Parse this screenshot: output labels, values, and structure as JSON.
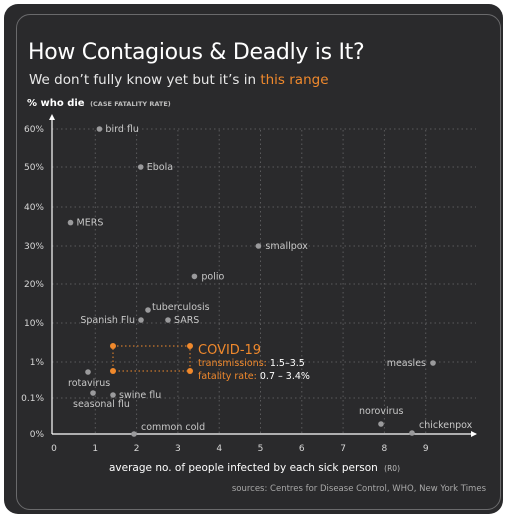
{
  "title": "How Contagious & Deadly is It?",
  "subtitle_plain": "We don’t fully know yet but it’s in ",
  "subtitle_highlight": "this range",
  "accent_color": "#f0892c",
  "source": "sources: Centres for Disease Control, WHO, New York Times",
  "chart_data": {
    "type": "scatter",
    "ylabel_main": "% who die",
    "ylabel_sub": "(CASE FATALITY RATE)",
    "xlabel_main": "average no. of people infected by each sick person",
    "xlabel_sub": "(R0)",
    "x_ticks": [
      "0",
      "1",
      "2",
      "3",
      "4",
      "5",
      "6",
      "7",
      "8",
      "9"
    ],
    "xlim": [
      0,
      10
    ],
    "y_ticks": [
      "0%",
      "0.1%",
      "1%",
      "10%",
      "20%",
      "30%",
      "40%",
      "50%",
      "60%"
    ],
    "y_scale": "piecewise: 0%, 0.1%, 1% then linear 10%–60%",
    "grid": true,
    "points": [
      {
        "label": "bird flu",
        "x": 1.1,
        "y": 60
      },
      {
        "label": "Ebola",
        "x": 2.1,
        "y": 50
      },
      {
        "label": "MERS",
        "x": 0.4,
        "y": 36
      },
      {
        "label": "smallpox",
        "x": 4.95,
        "y": 30
      },
      {
        "label": "polio",
        "x": 3.4,
        "y": 22
      },
      {
        "label": "tuberculosis",
        "x": 2.3,
        "y": 13
      },
      {
        "label": "Spanish Flu",
        "x": 2.1,
        "y": 10
      },
      {
        "label": "SARS",
        "x": 2.8,
        "y": 10
      },
      {
        "label": "measles",
        "x": 9.0,
        "y": 2
      },
      {
        "label": "rotavirus",
        "x": 0.85,
        "y": 0.4
      },
      {
        "label": "swine flu",
        "x": 1.4,
        "y": 0.1
      },
      {
        "label": "seasonal flu",
        "x": 0.95,
        "y": 0.1
      },
      {
        "label": "norovirus",
        "x": 7.8,
        "y": 0.03
      },
      {
        "label": "common cold",
        "x": 1.9,
        "y": 0
      },
      {
        "label": "chickenpox",
        "x": 8.45,
        "y": 0
      }
    ],
    "covid": {
      "label": "COVID-19",
      "transmissions_key": "transmissions:",
      "transmissions_value": "1.5–3.5",
      "transmissions_range": [
        1.5,
        3.5
      ],
      "fatality_key": "fatality rate:",
      "fatality_value": "0.7 – 3.4%",
      "fatality_range": [
        0.7,
        3.4
      ]
    }
  }
}
